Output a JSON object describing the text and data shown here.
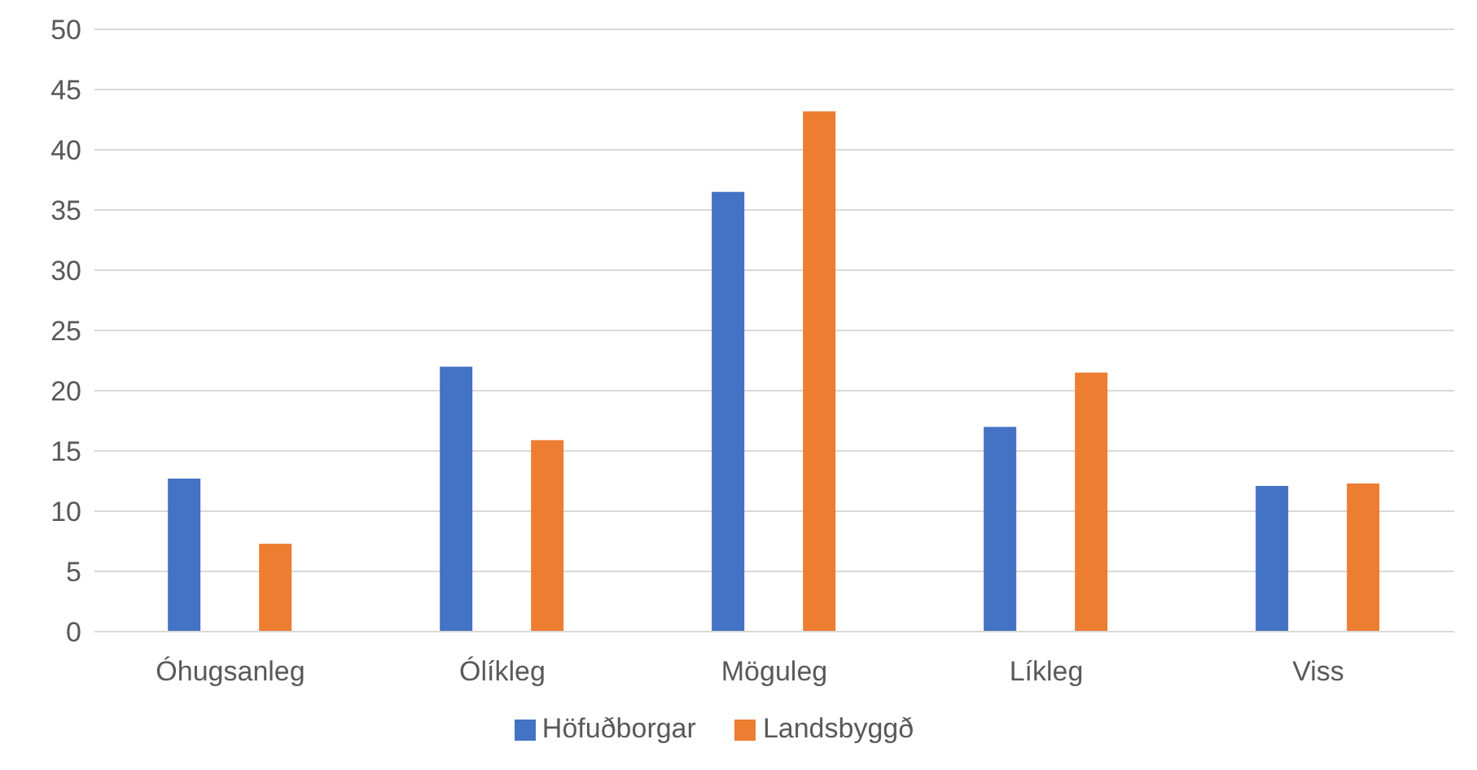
{
  "chart_data": {
    "type": "bar",
    "categories": [
      "Óhugsanleg",
      "Ólíkleg",
      "Möguleg",
      "Líkleg",
      "Viss"
    ],
    "series": [
      {
        "name": "Höfuðborgar",
        "color": "#4472c4",
        "values": [
          12.7,
          22.0,
          36.5,
          17.0,
          12.1
        ]
      },
      {
        "name": "Landsbyggð",
        "color": "#ed7d31",
        "values": [
          7.3,
          15.9,
          43.2,
          21.5,
          12.3
        ]
      }
    ],
    "ylim": [
      0,
      50
    ],
    "yticks": [
      0,
      5,
      10,
      15,
      20,
      25,
      30,
      35,
      40,
      45,
      50
    ],
    "grid": "y",
    "legend": "bottom"
  }
}
